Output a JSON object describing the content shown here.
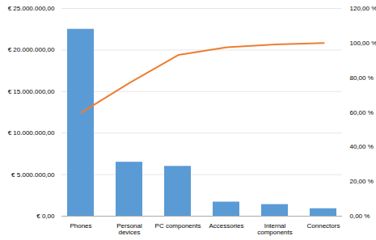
{
  "chart_data": {
    "type": "bar",
    "categories": [
      "Phones",
      "Personal\ndevices",
      "PC components",
      "Accessories",
      "Internal\ncomponents",
      "Connectors"
    ],
    "series": [
      {
        "type": "bar",
        "color": "#5b9bd5",
        "values": [
          22500000,
          6500000,
          6000000,
          1700000,
          1400000,
          900000
        ]
      },
      {
        "type": "line",
        "color": "#ed7d31",
        "axis": "y2",
        "values": [
          0.598,
          0.771,
          0.931,
          0.976,
          0.992,
          1.0
        ]
      }
    ],
    "ylim": [
      0,
      25000000
    ],
    "yticks": [
      {
        "value": 0,
        "label": "€ 0,00"
      },
      {
        "value": 5000000,
        "label": "€ 5.000.000,00"
      },
      {
        "value": 10000000,
        "label": "€ 10.000.000,00"
      },
      {
        "value": 15000000,
        "label": "€ 15.000.000,00"
      },
      {
        "value": 20000000,
        "label": "€ 20.000.000,00"
      },
      {
        "value": 25000000,
        "label": "€ 25.000.000,00"
      }
    ],
    "y2lim": [
      0,
      1.2
    ],
    "y2ticks": [
      {
        "value": 0.0,
        "label": "0,00 %"
      },
      {
        "value": 0.2,
        "label": "20,00 %"
      },
      {
        "value": 0.4,
        "label": "40,00 %"
      },
      {
        "value": 0.6,
        "label": "60,00 %"
      },
      {
        "value": 0.8,
        "label": "80,00 %"
      },
      {
        "value": 1.0,
        "label": "100,00 %"
      },
      {
        "value": 1.2,
        "label": "120,00 %"
      }
    ],
    "grid": true
  }
}
